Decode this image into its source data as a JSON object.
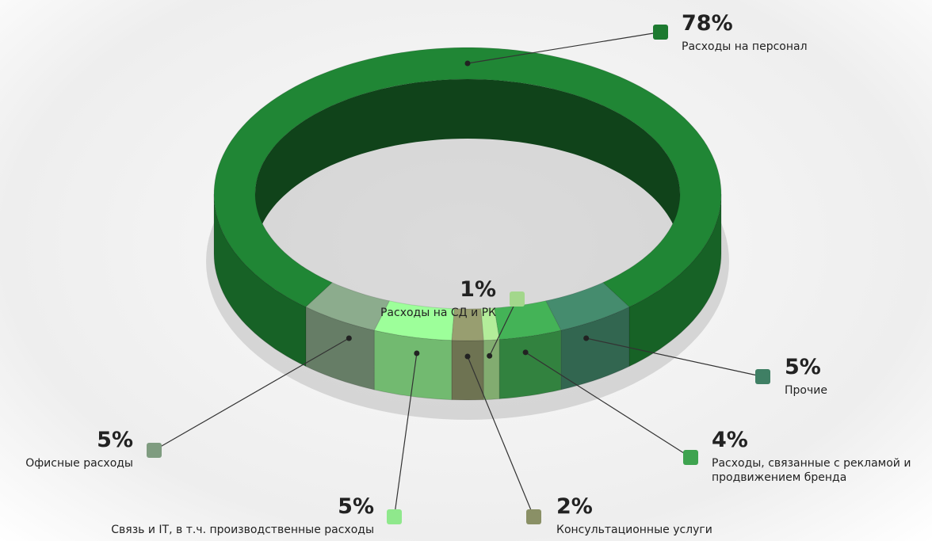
{
  "chart_data": {
    "type": "ring",
    "categories": [
      "Расходы на персонал",
      "Прочие",
      "Расходы, связанные с рекламой и продвижением бренда",
      "Расходы на СД и РК",
      "Консультационные услуги",
      "Связь и IT, в т.ч. производственные расходы",
      "Офисные расходы"
    ],
    "values": [
      78,
      5,
      4,
      1,
      2,
      5,
      5
    ],
    "value_labels": [
      "78%",
      "5%",
      "4%",
      "1%",
      "2%",
      "5%",
      "5%"
    ],
    "colors": [
      "#1d7a30",
      "#3f7f64",
      "#3ea34f",
      "#a3d78c",
      "#8a9066",
      "#8fe88c",
      "#7f9c80"
    ]
  }
}
